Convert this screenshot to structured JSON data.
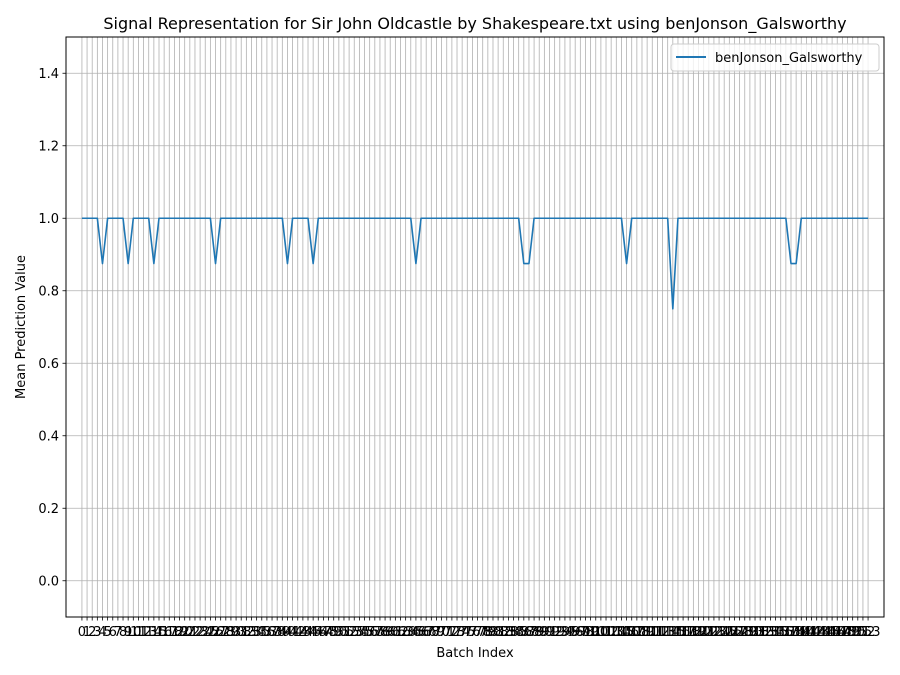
{
  "chart_data": {
    "type": "line",
    "title": "Signal Representation for Sir John Oldcastle by Shakespeare.txt using benJonson_Galsworthy",
    "xlabel": "Batch Index",
    "ylabel": "Mean Prediction Value",
    "xlim": [
      -3.1,
      156.1
    ],
    "ylim": [
      -0.1,
      1.5
    ],
    "yticks": [
      0.0,
      0.2,
      0.4,
      0.6,
      0.8,
      1.0,
      1.2,
      1.4
    ],
    "ytick_labels": [
      "0.0",
      "0.2",
      "0.4",
      "0.6",
      "0.8",
      "1.0",
      "1.2",
      "1.4"
    ],
    "xticks_start": 0,
    "xticks_end": 153,
    "grid": true,
    "legend_position": "top-right",
    "series": [
      {
        "name": "benJonson_Galsworthy",
        "color": "#1f77b4",
        "x_start": 0,
        "values": [
          1.0,
          1.0,
          1.0,
          1.0,
          0.875,
          1.0,
          1.0,
          1.0,
          1.0,
          0.875,
          1.0,
          1.0,
          1.0,
          1.0,
          0.875,
          1.0,
          1.0,
          1.0,
          1.0,
          1.0,
          1.0,
          1.0,
          1.0,
          1.0,
          1.0,
          1.0,
          0.875,
          1.0,
          1.0,
          1.0,
          1.0,
          1.0,
          1.0,
          1.0,
          1.0,
          1.0,
          1.0,
          1.0,
          1.0,
          1.0,
          0.875,
          1.0,
          1.0,
          1.0,
          1.0,
          0.875,
          1.0,
          1.0,
          1.0,
          1.0,
          1.0,
          1.0,
          1.0,
          1.0,
          1.0,
          1.0,
          1.0,
          1.0,
          1.0,
          1.0,
          1.0,
          1.0,
          1.0,
          1.0,
          1.0,
          0.875,
          1.0,
          1.0,
          1.0,
          1.0,
          1.0,
          1.0,
          1.0,
          1.0,
          1.0,
          1.0,
          1.0,
          1.0,
          1.0,
          1.0,
          1.0,
          1.0,
          1.0,
          1.0,
          1.0,
          1.0,
          0.875,
          0.875,
          1.0,
          1.0,
          1.0,
          1.0,
          1.0,
          1.0,
          1.0,
          1.0,
          1.0,
          1.0,
          1.0,
          1.0,
          1.0,
          1.0,
          1.0,
          1.0,
          1.0,
          1.0,
          0.875,
          1.0,
          1.0,
          1.0,
          1.0,
          1.0,
          1.0,
          1.0,
          1.0,
          0.75,
          1.0,
          1.0,
          1.0,
          1.0,
          1.0,
          1.0,
          1.0,
          1.0,
          1.0,
          1.0,
          1.0,
          1.0,
          1.0,
          1.0,
          1.0,
          1.0,
          1.0,
          1.0,
          1.0,
          1.0,
          1.0,
          1.0,
          0.875,
          0.875,
          1.0,
          1.0,
          1.0,
          1.0,
          1.0,
          1.0,
          1.0,
          1.0,
          1.0,
          1.0,
          1.0,
          1.0,
          1.0,
          1.0
        ]
      }
    ]
  }
}
